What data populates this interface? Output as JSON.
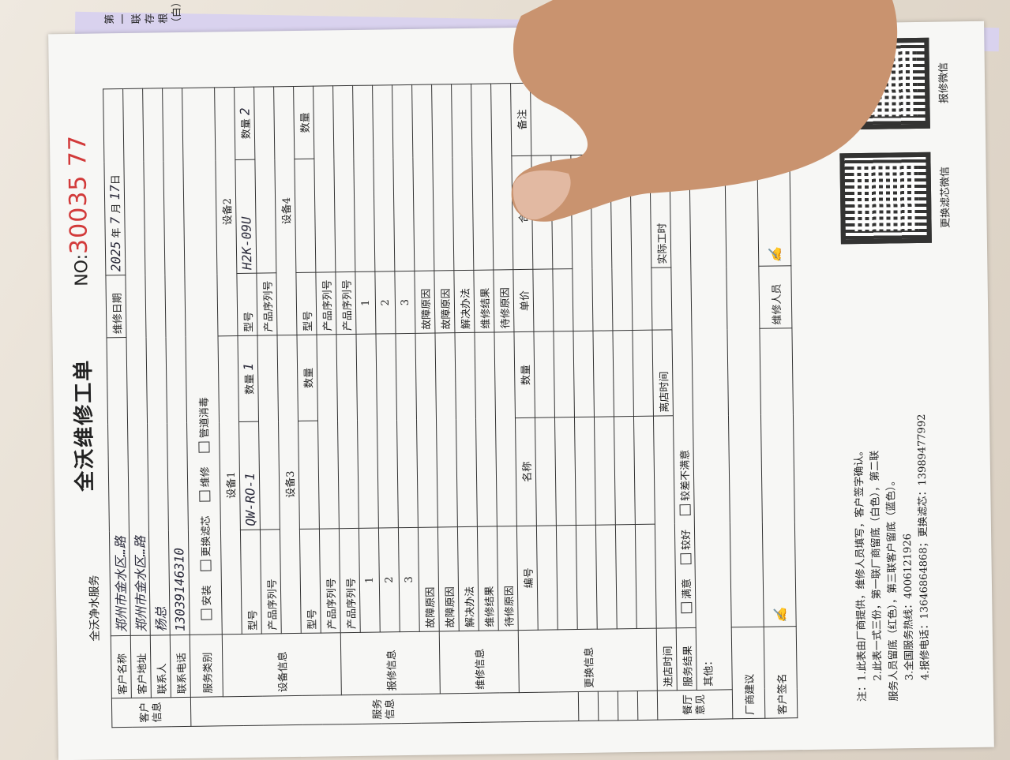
{
  "header": {
    "brand": "全沃净水服务",
    "title": "全沃维修工单",
    "no_label": "NO:",
    "no_value": "30035 77",
    "copy_label": "第一联存根（白）"
  },
  "customer": {
    "group": "客户信息",
    "name_label": "客户名称",
    "name_value": "郑州市金水区…路",
    "address_label": "客户地址",
    "address_value": "郑州市金水区…路",
    "contact_label": "联系人",
    "contact_value": "杨总",
    "phone_label": "联系电话",
    "phone_value": "13039146310",
    "date_label": "维修日期",
    "year": "2025",
    "year_unit": "年",
    "month": "7",
    "month_unit": "月",
    "day": "17",
    "day_unit": "日"
  },
  "service_type": {
    "label": "服务类别",
    "options": [
      "安装",
      "更换滤芯",
      "维修",
      "管道消毒"
    ],
    "checked": "安装"
  },
  "service_group": "服务信息",
  "device": {
    "label": "设备信息",
    "d1": "设备1",
    "d2": "设备2",
    "d3": "设备3",
    "d4": "设备4",
    "model": "型号",
    "serial": "产品序列号",
    "qty": "数量",
    "d1_model": "QW-RO-1",
    "d1_qty": "1",
    "d2_model": "H2K-09U",
    "d2_qty": "2"
  },
  "report": {
    "label": "报修信息",
    "serial": "产品序列号",
    "rows": [
      "1",
      "2",
      "3"
    ],
    "cause": "故障原因"
  },
  "repair": {
    "label": "维修信息",
    "rows": [
      "故障原因",
      "解决办法",
      "维修结果",
      "待修原因"
    ]
  },
  "replace": {
    "label": "更换信息",
    "cols": [
      "编号",
      "名称",
      "数量",
      "单价",
      "合计",
      "备注"
    ]
  },
  "time": {
    "in": "进店时间",
    "out": "离店时间",
    "actual": "实际工时"
  },
  "result": {
    "label": "服务结果",
    "options": [
      "满意",
      "较好",
      "较差不满意"
    ]
  },
  "other": "其他：",
  "restaurant": "餐厅意见",
  "vendor": "厂商建议",
  "sign": {
    "customer": "客户签名",
    "staff": "维修人员"
  },
  "notes": [
    "注：1.此表由厂商提供，维修人员填写，客户签字确认。",
    "2.此表一式三份，第一联厂商留底（白色），第二联",
    "服务人员留底（红色），第三联客户留底（蓝色）。",
    "3.全国服务热线：4006121926",
    "4.报修电话：13646864868；更换滤芯：13989477992"
  ],
  "qr": {
    "left": "更换滤芯微信",
    "right": "报修微信"
  }
}
